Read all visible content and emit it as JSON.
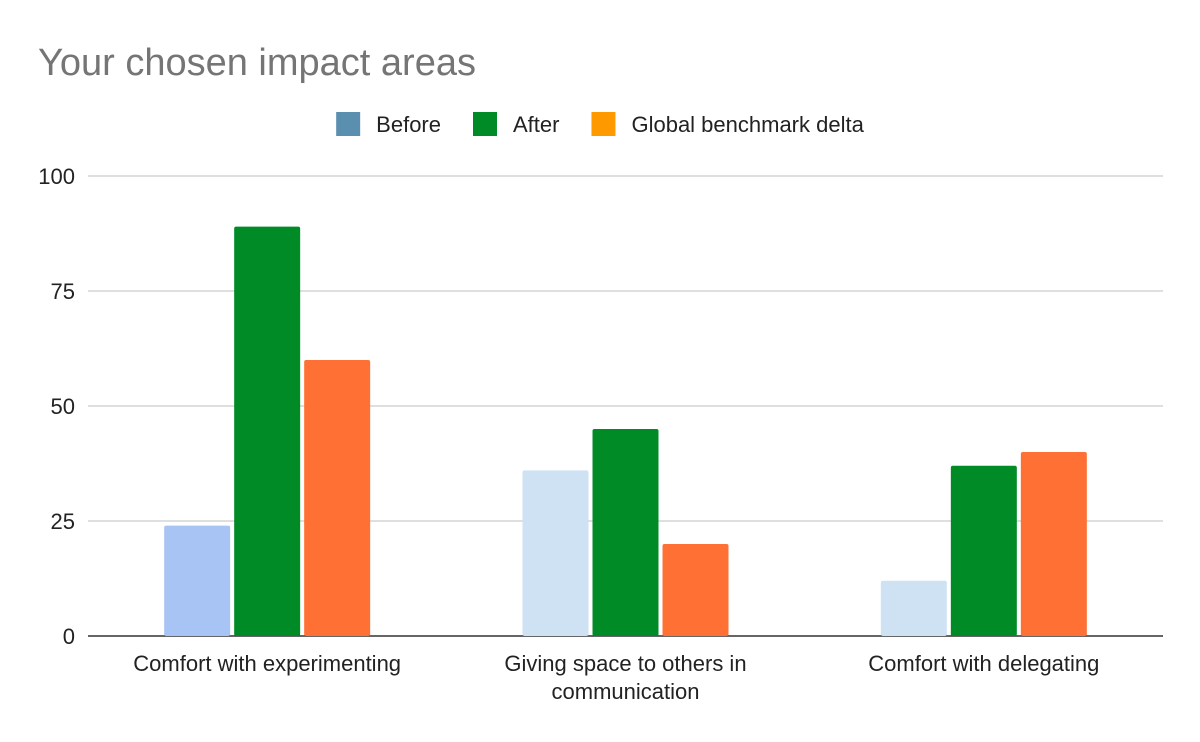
{
  "chart_data": {
    "type": "bar",
    "title": "Your chosen impact areas",
    "categories": [
      [
        "Comfort with experimenting"
      ],
      [
        "Giving space to others in",
        "communication"
      ],
      [
        "Comfort with delegating"
      ]
    ],
    "series": [
      {
        "name": "Before",
        "legend_color": "#5b8fb0",
        "values": [
          24,
          36,
          12
        ],
        "colors": [
          "#a8c4f5",
          "#cfe2f3",
          "#cfe2f3"
        ]
      },
      {
        "name": "After",
        "legend_color": "#008b27",
        "values": [
          89,
          45,
          37
        ],
        "colors": [
          "#008b27",
          "#008b27",
          "#008b27"
        ]
      },
      {
        "name": "Global benchmark delta",
        "legend_color": "#ff9900",
        "values": [
          60,
          20,
          40
        ],
        "colors": [
          "#ff7034",
          "#ff7034",
          "#ff7034"
        ]
      }
    ],
    "ylim": [
      0,
      100
    ],
    "yticks": [
      "0",
      "25",
      "50",
      "75",
      "100"
    ],
    "grid": true,
    "legend_position": "top",
    "colors": {
      "title": "#757575",
      "grid": "#cccccc",
      "axis": "#333333",
      "text": "#222222"
    }
  }
}
